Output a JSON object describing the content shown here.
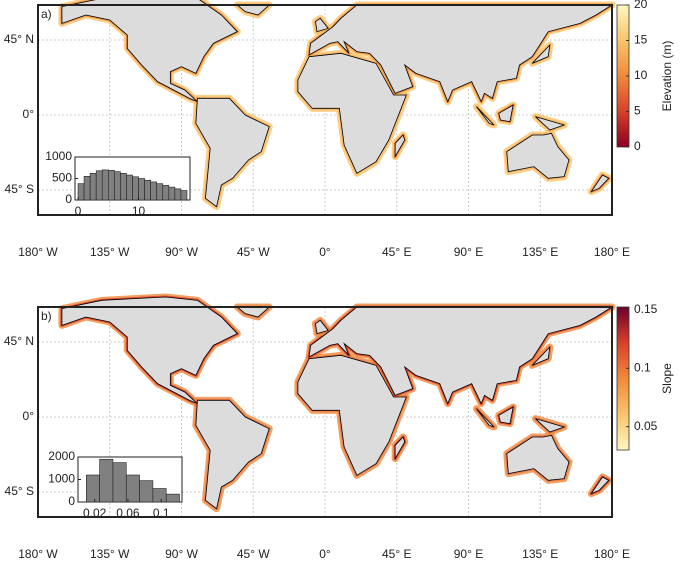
{
  "panels": [
    {
      "label": "a)",
      "colorbar": {
        "label": "Elevation (m)",
        "clim": [
          0,
          20
        ],
        "ticks": [
          0,
          5,
          10,
          15,
          20
        ],
        "colormap": [
          "#8b0020",
          "#d8402a",
          "#f08a3c",
          "#f9c46a",
          "#fff7c4"
        ]
      },
      "histogram": {
        "bins": [
          0,
          1,
          2,
          3,
          4,
          5,
          6,
          7,
          8,
          9,
          10,
          11,
          12,
          13,
          14,
          15,
          16,
          17,
          18
        ],
        "counts": [
          380,
          550,
          620,
          680,
          700,
          690,
          660,
          620,
          580,
          540,
          500,
          460,
          420,
          380,
          340,
          300,
          260,
          220
        ],
        "xlim": [
          -0.5,
          18.5
        ],
        "ylim": [
          0,
          1000
        ],
        "xticks": [
          0,
          10
        ],
        "yticks": [
          0,
          500,
          1000
        ],
        "color": "#808080"
      }
    },
    {
      "label": "b)",
      "colorbar": {
        "label": "Slope",
        "clim": [
          0.03,
          0.15
        ],
        "ticks": [
          0.05,
          0.1,
          0.15
        ],
        "colormap": [
          "#fff7c4",
          "#f9c46a",
          "#f08a3c",
          "#d8402a",
          "#6b0028"
        ]
      },
      "histogram": {
        "bins": [
          0.01,
          0.026,
          0.042,
          0.058,
          0.074,
          0.09,
          0.106,
          0.122
        ],
        "counts": [
          1200,
          1900,
          1750,
          1200,
          950,
          600,
          350
        ],
        "xlim": [
          0,
          0.125
        ],
        "ylim": [
          0,
          2000
        ],
        "xticks": [
          0.02,
          0.06,
          0.1
        ],
        "yticks": [
          0,
          1000,
          2000
        ],
        "color": "#808080"
      }
    }
  ],
  "lon_labels": [
    "180° W",
    "135° W",
    "90° W",
    "45° W",
    "0°",
    "45° E",
    "90° E",
    "135° E",
    "180° E"
  ],
  "lat_labels": [
    "45° N",
    "0°",
    "45° S"
  ]
}
